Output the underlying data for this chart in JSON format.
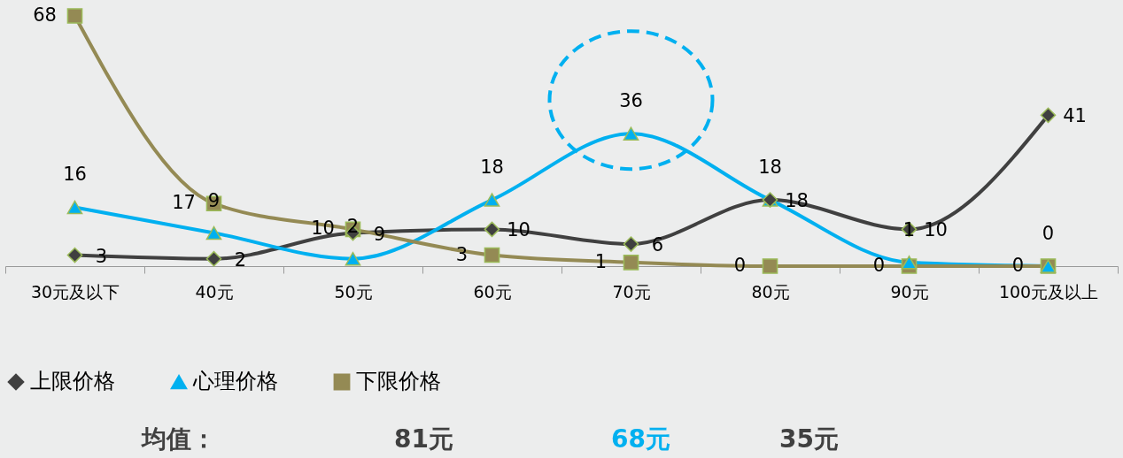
{
  "chart_data": {
    "type": "line",
    "categories": [
      "30元及以下",
      "40元",
      "50元",
      "60元",
      "70元",
      "80元",
      "90元",
      "100元及以上"
    ],
    "series": [
      {
        "name": "上限价格",
        "color": "#404040",
        "marker": "diamond",
        "values": [
          3,
          2,
          9,
          10,
          6,
          18,
          10,
          41
        ]
      },
      {
        "name": "心理价格",
        "color": "#00b0f0",
        "marker": "triangle",
        "values": [
          16,
          9,
          2,
          18,
          36,
          18,
          1,
          0
        ]
      },
      {
        "name": "下限价格",
        "color": "#948a54",
        "marker": "square",
        "values": [
          68,
          17,
          10,
          3,
          1,
          0,
          0,
          0
        ]
      }
    ],
    "data_labels": true,
    "legend": "bottom",
    "grid": false,
    "line_style": "solid",
    "annotations": [
      "均值：",
      "81元",
      "68元",
      "35元"
    ]
  }
}
